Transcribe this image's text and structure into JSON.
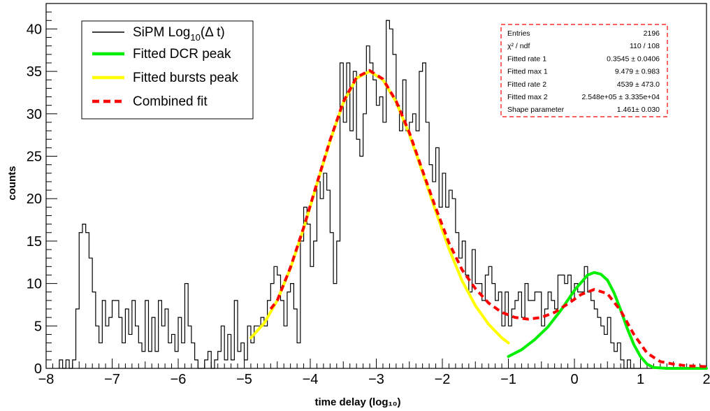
{
  "chart_data": {
    "type": "histogram",
    "title": "",
    "xlabel": "time delay (log₁₀)",
    "ylabel": "counts",
    "xlim": [
      -8,
      2
    ],
    "ylim": [
      0,
      43
    ],
    "xticks": [
      "−8",
      "−7",
      "−6",
      "−5",
      "−4",
      "−3",
      "−2",
      "−1",
      "0",
      "1",
      "2"
    ],
    "yticks": [
      "0",
      "5",
      "10",
      "15",
      "20",
      "25",
      "30",
      "35",
      "40"
    ],
    "grid": false,
    "legend": {
      "position": "top-left",
      "entries": [
        {
          "label_main": "SiPM Log",
          "label_sub": "10",
          "label_tail": "(Δ t)",
          "color": "#000000",
          "style": "step"
        },
        {
          "label": "Fitted DCR peak",
          "color": "#00ee00",
          "style": "solid"
        },
        {
          "label": "Fitted bursts peak",
          "color": "#ffff00",
          "style": "solid"
        },
        {
          "label": "Combined fit",
          "color": "#ff0000",
          "style": "dashed"
        }
      ]
    },
    "stats_box": {
      "position": "top-right",
      "rows": [
        {
          "label": "Entries",
          "value": "2196"
        },
        {
          "label": "χ² / ndf",
          "value": "110 / 108"
        },
        {
          "label": "Fitted rate 1",
          "value": "0.3545 ± 0.0406"
        },
        {
          "label": "Fitted max 1",
          "value": "9.479 ± 0.983"
        },
        {
          "label": "Fitted rate 2",
          "value": "4539 ± 473.0"
        },
        {
          "label": "Fitted max 2",
          "value": "2.548e+05 ± 3.335e+04"
        },
        {
          "label": "Shape parameter",
          "value": "1.461± 0.030"
        }
      ]
    },
    "histogram": {
      "name": "SiPM Log10(Δ t)",
      "color": "#000000",
      "x_start": -7.8,
      "bin_width": 0.05,
      "counts": [
        1,
        0,
        1,
        0,
        1,
        7,
        16,
        17,
        16,
        13,
        9,
        5,
        3,
        8,
        5,
        6,
        8,
        8,
        6,
        3,
        7,
        4,
        8,
        5,
        3,
        2,
        8,
        2,
        6,
        2,
        8,
        5,
        7,
        3,
        4,
        2,
        6,
        3,
        10,
        5,
        3,
        1,
        0,
        0,
        1,
        2,
        0,
        1,
        2,
        5,
        1,
        4,
        1,
        8,
        2,
        3,
        1,
        5,
        3,
        5,
        5,
        6,
        5,
        8,
        10,
        12,
        11,
        8,
        5,
        9,
        10,
        7,
        3,
        15,
        19,
        17,
        12,
        15,
        22,
        20,
        23,
        21,
        16,
        10,
        15,
        36,
        29,
        36,
        28,
        35,
        27,
        25,
        30,
        38,
        36,
        34,
        31,
        32,
        29,
        41,
        40,
        37,
        31,
        28,
        34,
        28,
        29,
        30,
        28,
        35,
        36,
        29,
        24,
        22,
        26,
        19,
        23,
        19,
        21,
        20,
        16,
        13,
        15,
        11,
        9,
        14,
        10,
        10,
        8,
        11,
        12,
        10,
        8,
        9,
        5,
        9,
        5,
        7,
        8,
        9,
        6,
        10,
        8,
        8,
        9,
        9,
        5,
        7,
        9,
        8,
        7,
        11,
        11,
        10,
        11,
        8,
        10,
        9,
        9,
        12,
        9,
        8,
        7,
        6,
        5,
        4,
        6,
        3,
        2,
        3,
        1,
        0,
        1,
        0,
        0,
        0
      ]
    },
    "fits": [
      {
        "name": "Fitted bursts peak",
        "color": "#ffff00",
        "x": [
          -4.9,
          -4.7,
          -4.5,
          -4.3,
          -4.1,
          -3.9,
          -3.7,
          -3.5,
          -3.3,
          -3.1,
          -2.9,
          -2.7,
          -2.5,
          -2.3,
          -2.1,
          -1.9,
          -1.7,
          -1.5,
          -1.3,
          -1.1,
          -1.0
        ],
        "y": [
          3.6,
          5.3,
          8.0,
          11.8,
          16.5,
          21.7,
          26.8,
          31.3,
          34.2,
          35.0,
          34.0,
          31.4,
          27.6,
          23.1,
          18.5,
          14.1,
          10.3,
          7.4,
          5.2,
          3.6,
          3.0
        ]
      },
      {
        "name": "Fitted DCR peak",
        "color": "#00ee00",
        "x": [
          -1.0,
          -0.8,
          -0.6,
          -0.4,
          -0.2,
          0.0,
          0.2,
          0.3,
          0.4,
          0.5,
          0.6,
          0.7,
          0.8,
          0.9,
          1.0,
          1.1,
          1.2,
          1.4,
          1.6,
          1.8,
          2.0
        ],
        "y": [
          1.4,
          2.2,
          3.4,
          4.9,
          6.9,
          9.2,
          11.0,
          11.3,
          11.1,
          10.4,
          8.9,
          6.9,
          4.7,
          2.8,
          1.4,
          0.5,
          0.1,
          0,
          0,
          0,
          0
        ]
      },
      {
        "name": "Combined fit",
        "color": "#ff0000",
        "x": [
          -4.6,
          -4.5,
          -4.3,
          -4.1,
          -3.9,
          -3.7,
          -3.5,
          -3.3,
          -3.1,
          -2.9,
          -2.7,
          -2.5,
          -2.3,
          -2.1,
          -1.9,
          -1.7,
          -1.5,
          -1.3,
          -1.1,
          -0.9,
          -0.7,
          -0.5,
          -0.3,
          -0.1,
          0.1,
          0.3,
          0.5,
          0.7,
          0.9,
          1.1,
          1.3,
          1.5,
          1.7,
          2.0
        ],
        "y": [
          7.0,
          8.0,
          11.9,
          16.6,
          21.8,
          26.9,
          31.4,
          34.3,
          35.1,
          34.1,
          31.5,
          27.8,
          23.3,
          18.9,
          14.8,
          11.6,
          9.4,
          7.7,
          6.6,
          6.0,
          5.8,
          6.0,
          6.6,
          7.6,
          8.7,
          9.3,
          8.8,
          6.8,
          4.0,
          1.8,
          0.8,
          0.5,
          0.3,
          0.2
        ]
      }
    ]
  }
}
